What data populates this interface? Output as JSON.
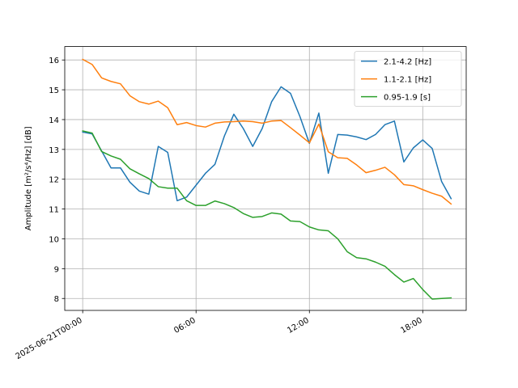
{
  "chart_data": {
    "type": "line",
    "title": "",
    "xlabel": "",
    "ylabel": "Amplitude [m²/s⁴/Hz] [dB]",
    "xlim_hours": [
      -0.95,
      20.3
    ],
    "ylim": [
      7.6,
      16.45
    ],
    "grid": true,
    "legend_position": "top-right",
    "x_ticks": [
      {
        "hour": 0,
        "label": "2025-06-21T00:00"
      },
      {
        "hour": 6,
        "label": "06:00"
      },
      {
        "hour": 12,
        "label": "12:00"
      },
      {
        "hour": 18,
        "label": "18:00"
      }
    ],
    "y_ticks": [
      8,
      9,
      10,
      11,
      12,
      13,
      14,
      15,
      16
    ],
    "series": [
      {
        "name": "2.1-4.2 [Hz]",
        "color": "#1f77b4",
        "points": [
          [
            0.0,
            13.58
          ],
          [
            0.5,
            13.52
          ],
          [
            1.0,
            12.95
          ],
          [
            1.5,
            12.38
          ],
          [
            2.0,
            12.38
          ],
          [
            2.5,
            11.9
          ],
          [
            3.0,
            11.6
          ],
          [
            3.5,
            11.5
          ],
          [
            4.0,
            13.1
          ],
          [
            4.5,
            12.9
          ],
          [
            5.0,
            11.28
          ],
          [
            5.5,
            11.4
          ],
          [
            6.0,
            11.8
          ],
          [
            6.5,
            12.2
          ],
          [
            7.0,
            12.5
          ],
          [
            7.5,
            13.45
          ],
          [
            8.0,
            14.18
          ],
          [
            8.5,
            13.7
          ],
          [
            9.0,
            13.1
          ],
          [
            9.5,
            13.7
          ],
          [
            10.0,
            14.6
          ],
          [
            10.5,
            15.1
          ],
          [
            11.0,
            14.88
          ],
          [
            11.5,
            14.1
          ],
          [
            12.0,
            13.2
          ],
          [
            12.5,
            14.22
          ],
          [
            13.0,
            12.2
          ],
          [
            13.5,
            13.5
          ],
          [
            14.0,
            13.48
          ],
          [
            14.5,
            13.42
          ],
          [
            15.0,
            13.33
          ],
          [
            15.5,
            13.5
          ],
          [
            16.0,
            13.83
          ],
          [
            16.5,
            13.95
          ],
          [
            17.0,
            12.58
          ],
          [
            17.5,
            13.05
          ],
          [
            18.0,
            13.32
          ],
          [
            18.5,
            13.03
          ],
          [
            19.0,
            11.92
          ],
          [
            19.5,
            11.35
          ]
        ]
      },
      {
        "name": "1.1-2.1 [Hz]",
        "color": "#ff7f0e",
        "points": [
          [
            0.0,
            16.02
          ],
          [
            0.5,
            15.85
          ],
          [
            1.0,
            15.4
          ],
          [
            1.5,
            15.28
          ],
          [
            2.0,
            15.2
          ],
          [
            2.5,
            14.8
          ],
          [
            3.0,
            14.6
          ],
          [
            3.5,
            14.52
          ],
          [
            4.0,
            14.62
          ],
          [
            4.5,
            14.4
          ],
          [
            5.0,
            13.83
          ],
          [
            5.5,
            13.9
          ],
          [
            6.0,
            13.8
          ],
          [
            6.5,
            13.75
          ],
          [
            7.0,
            13.88
          ],
          [
            7.5,
            13.92
          ],
          [
            8.0,
            13.93
          ],
          [
            8.5,
            13.95
          ],
          [
            9.0,
            13.93
          ],
          [
            9.5,
            13.88
          ],
          [
            10.0,
            13.95
          ],
          [
            10.5,
            13.97
          ],
          [
            11.0,
            13.73
          ],
          [
            11.5,
            13.48
          ],
          [
            12.0,
            13.22
          ],
          [
            12.5,
            13.85
          ],
          [
            13.0,
            12.92
          ],
          [
            13.5,
            12.72
          ],
          [
            14.0,
            12.7
          ],
          [
            14.5,
            12.48
          ],
          [
            15.0,
            12.22
          ],
          [
            15.5,
            12.3
          ],
          [
            16.0,
            12.4
          ],
          [
            16.5,
            12.15
          ],
          [
            17.0,
            11.82
          ],
          [
            17.5,
            11.78
          ],
          [
            18.0,
            11.65
          ],
          [
            18.5,
            11.53
          ],
          [
            19.0,
            11.43
          ],
          [
            19.5,
            11.17
          ]
        ]
      },
      {
        "name": "0.95-1.9 [s]",
        "color": "#2ca02c",
        "points": [
          [
            0.0,
            13.62
          ],
          [
            0.5,
            13.55
          ],
          [
            1.0,
            12.93
          ],
          [
            1.5,
            12.78
          ],
          [
            2.0,
            12.67
          ],
          [
            2.5,
            12.35
          ],
          [
            3.0,
            12.18
          ],
          [
            3.5,
            12.02
          ],
          [
            4.0,
            11.75
          ],
          [
            4.5,
            11.7
          ],
          [
            5.0,
            11.7
          ],
          [
            5.5,
            11.28
          ],
          [
            6.0,
            11.12
          ],
          [
            6.5,
            11.12
          ],
          [
            7.0,
            11.27
          ],
          [
            7.5,
            11.18
          ],
          [
            8.0,
            11.05
          ],
          [
            8.5,
            10.85
          ],
          [
            9.0,
            10.72
          ],
          [
            9.5,
            10.75
          ],
          [
            10.0,
            10.87
          ],
          [
            10.5,
            10.83
          ],
          [
            11.0,
            10.6
          ],
          [
            11.5,
            10.58
          ],
          [
            12.0,
            10.4
          ],
          [
            12.5,
            10.3
          ],
          [
            13.0,
            10.27
          ],
          [
            13.5,
            10.0
          ],
          [
            14.0,
            9.57
          ],
          [
            14.5,
            9.37
          ],
          [
            15.0,
            9.33
          ],
          [
            15.5,
            9.22
          ],
          [
            16.0,
            9.08
          ],
          [
            16.5,
            8.8
          ],
          [
            17.0,
            8.55
          ],
          [
            17.5,
            8.67
          ],
          [
            18.0,
            8.3
          ],
          [
            18.5,
            7.98
          ],
          [
            19.0,
            8.0
          ],
          [
            19.5,
            8.02
          ]
        ]
      }
    ]
  }
}
